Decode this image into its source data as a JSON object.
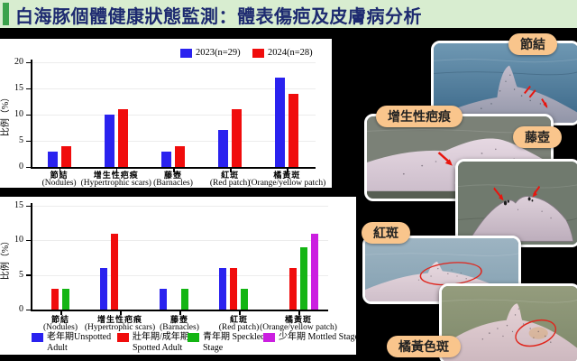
{
  "title": {
    "text": "白海豚個體健康狀態監測：體表傷疤及皮膚病分析",
    "text_color": "#1d2a70",
    "bar_background": "#d8edd0",
    "accent_color": "#3ba24c"
  },
  "colors": {
    "page_background": "#000000",
    "panel_background": "#ffffff",
    "badge_background": "#f9c58c",
    "annotation_red": "#e8150e"
  },
  "chart_data": [
    {
      "type": "bar",
      "title": "",
      "ylabel": "比例（%）",
      "ylim": [
        0,
        20
      ],
      "yticks": [
        0,
        5,
        10,
        15,
        20
      ],
      "grid": true,
      "legend_position": "top",
      "categories_zh": [
        "節結",
        "增生性疤痕",
        "藤壺",
        "紅斑",
        "橘黃斑"
      ],
      "categories_en": [
        "(Nodules)",
        "(Hypertrophic scars)",
        "(Barnacles)",
        "(Red patch)",
        "(Orange/yellow patch)"
      ],
      "series": [
        {
          "name": "2023(n=29)",
          "color": "#2a22ef",
          "values": [
            3,
            10,
            3,
            7,
            17
          ]
        },
        {
          "name": "2024(n=28)",
          "color": "#f00c0c",
          "values": [
            4,
            11,
            4,
            11,
            14
          ]
        }
      ]
    },
    {
      "type": "bar",
      "title": "",
      "ylabel": "比例（%）",
      "ylim": [
        0,
        15
      ],
      "yticks": [
        0,
        5,
        10,
        15
      ],
      "grid": true,
      "legend_position": "bottom",
      "categories_zh": [
        "節結",
        "增生性疤痕",
        "藤壺",
        "紅斑",
        "橘黃斑"
      ],
      "categories_en": [
        "(Nodules)",
        "(Hypertrophic scars)",
        "(Barnacles)",
        "(Red patch)",
        "(Orange/yellow patch)"
      ],
      "series": [
        {
          "name": "老年期Unspotted Adult",
          "color": "#2a22ef",
          "values": [
            0,
            6,
            3,
            6,
            0
          ]
        },
        {
          "name": "壯年期/成年期 Spotted Adult",
          "color": "#f00c0c",
          "values": [
            3,
            11,
            0,
            6,
            6
          ]
        },
        {
          "name": "青年期 Speckled Stage",
          "color": "#13b513",
          "values": [
            3,
            0,
            3,
            3,
            9
          ]
        },
        {
          "name": "少年期 Mottled Stage",
          "color": "#cb1fe0",
          "values": [
            0,
            0,
            0,
            0,
            11
          ]
        }
      ]
    }
  ],
  "photos": [
    {
      "id": "nodules",
      "label": "節結",
      "badge_position": "top-right",
      "annotation": "red-arrows"
    },
    {
      "id": "hypertrophic-scars",
      "label": "增生性疤痕",
      "badge_position": "top-left",
      "annotation": "red-arrow"
    },
    {
      "id": "barnacles",
      "label": "藤壺",
      "badge_position": "top-right",
      "annotation": "red-arrows"
    },
    {
      "id": "red-patch",
      "label": "紅斑",
      "badge_position": "top-left",
      "annotation": "red-ellipse"
    },
    {
      "id": "orange-yellow-patch",
      "label": "橘黃色斑",
      "badge_position": "bottom-left",
      "annotation": "red-ellipse"
    }
  ]
}
